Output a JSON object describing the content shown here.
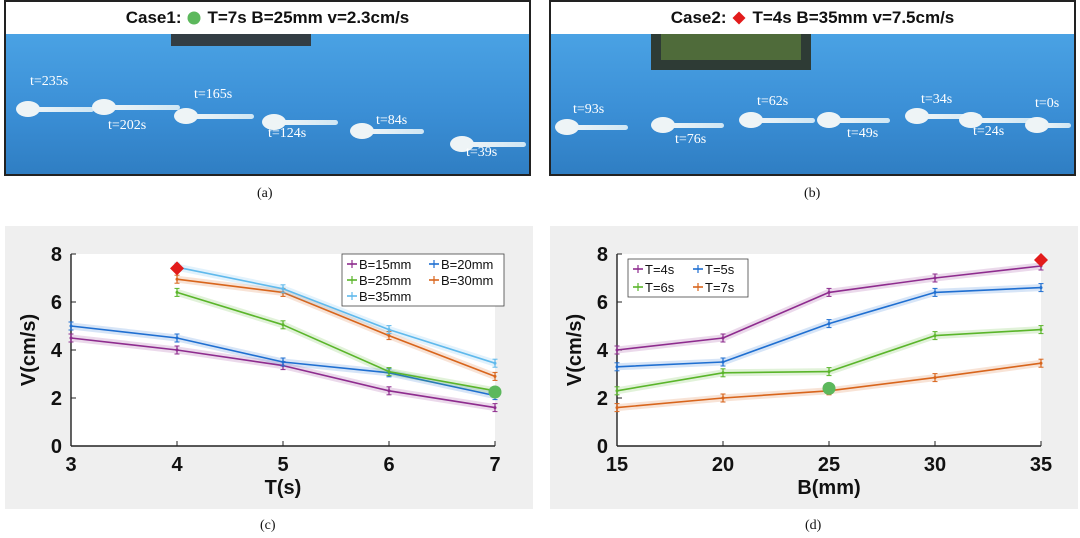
{
  "photos": [
    {
      "header_prefix": "Case1:",
      "header_text": "T=7s B=25mm v=2.3cm/s",
      "marker_color": "#5cb85c",
      "marker": "circle",
      "caption": "(a)",
      "snapshots": [
        "t=235s",
        "t=202s",
        "t=165s",
        "t=124s",
        "t=84s",
        "t=39s"
      ]
    },
    {
      "header_prefix": "Case2:",
      "header_text": "T=4s B=35mm v=7.5cm/s",
      "marker_color": "#e21b1b",
      "marker": "diamond",
      "caption": "(b)",
      "snapshots": [
        "t=93s",
        "t=76s",
        "t=62s",
        "t=49s",
        "t=34s",
        "t=24s",
        "t=0s"
      ]
    }
  ],
  "chart_data": [
    {
      "type": "line",
      "caption": "(c)",
      "xlabel": "T(s)",
      "ylabel": "V(cm/s)",
      "xlim": [
        3,
        7
      ],
      "ylim": [
        0,
        8
      ],
      "xticks": [
        3,
        4,
        5,
        6,
        7
      ],
      "yticks": [
        0,
        2,
        4,
        6,
        8
      ],
      "legend_position": "top-right",
      "series": [
        {
          "name": "B=15mm",
          "color": "#8e2c8e",
          "x": [
            3,
            4,
            5,
            6,
            7
          ],
          "values": [
            4.5,
            4.0,
            3.35,
            2.3,
            1.6
          ]
        },
        {
          "name": "B=20mm",
          "color": "#1f6fd1",
          "x": [
            3,
            4,
            5,
            6,
            7
          ],
          "values": [
            5.0,
            4.5,
            3.5,
            3.05,
            2.1
          ]
        },
        {
          "name": "B=25mm",
          "color": "#5ab52a",
          "x": [
            4,
            5,
            6,
            7
          ],
          "values": [
            6.4,
            5.05,
            3.1,
            2.3
          ]
        },
        {
          "name": "B=30mm",
          "color": "#d8651c",
          "x": [
            4,
            5,
            6,
            7
          ],
          "values": [
            6.95,
            6.4,
            4.6,
            2.9
          ]
        },
        {
          "name": "B=35mm",
          "color": "#5fb9ec",
          "x": [
            4,
            5,
            6,
            7
          ],
          "values": [
            7.45,
            6.55,
            4.85,
            3.45
          ]
        }
      ],
      "highlights": [
        {
          "shape": "diamond",
          "color": "#e21b1b",
          "x": 4,
          "y": 7.4
        },
        {
          "shape": "circle",
          "color": "#5cb85c",
          "x": 7,
          "y": 2.25
        }
      ]
    },
    {
      "type": "line",
      "caption": "(d)",
      "xlabel": "B(mm)",
      "ylabel": "V(cm/s)",
      "xlim": [
        15,
        35
      ],
      "ylim": [
        0,
        8
      ],
      "xticks": [
        15,
        20,
        25,
        30,
        35
      ],
      "yticks": [
        0,
        2,
        4,
        6,
        8
      ],
      "legend_position": "top-left",
      "series": [
        {
          "name": "T=4s",
          "color": "#8e2c8e",
          "x": [
            15,
            20,
            25,
            30,
            35
          ],
          "values": [
            4.0,
            4.5,
            6.4,
            7.0,
            7.5
          ]
        },
        {
          "name": "T=5s",
          "color": "#1f6fd1",
          "x": [
            15,
            20,
            25,
            30,
            35
          ],
          "values": [
            3.3,
            3.5,
            5.1,
            6.4,
            6.6
          ]
        },
        {
          "name": "T=6s",
          "color": "#5ab52a",
          "x": [
            15,
            20,
            25,
            30,
            35
          ],
          "values": [
            2.3,
            3.05,
            3.1,
            4.6,
            4.85
          ]
        },
        {
          "name": "T=7s",
          "color": "#d8651c",
          "x": [
            15,
            20,
            25,
            30,
            35
          ],
          "values": [
            1.6,
            2.0,
            2.3,
            2.85,
            3.45
          ]
        }
      ],
      "highlights": [
        {
          "shape": "diamond",
          "color": "#e21b1b",
          "x": 35,
          "y": 7.75
        },
        {
          "shape": "circle",
          "color": "#5cb85c",
          "x": 25,
          "y": 2.4
        }
      ]
    }
  ]
}
